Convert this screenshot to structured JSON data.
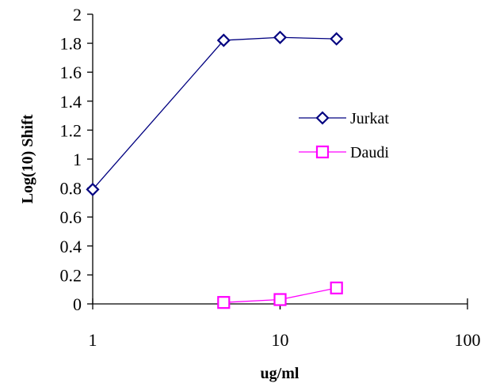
{
  "chart_data": {
    "type": "line",
    "xscale": "log",
    "xlim": [
      1,
      100
    ],
    "ylim": [
      0,
      2
    ],
    "ytick_step": 0.2,
    "xticks": [
      1,
      10,
      100
    ],
    "xtick_labels": [
      "1",
      "10",
      "100"
    ],
    "yticks": [
      0,
      0.2,
      0.4,
      0.6,
      0.8,
      1,
      1.2,
      1.4,
      1.6,
      1.8,
      2
    ],
    "ytick_labels": [
      "0",
      "0.2",
      "0.4",
      "0.6",
      "0.8",
      "1",
      "1.2",
      "1.4",
      "1.6",
      "1.8",
      "2"
    ],
    "xlabel": "ug/ml",
    "ylabel": "Log(10) Shift",
    "grid": false,
    "legend_position": "right",
    "series": [
      {
        "name": "Jurkat",
        "color": "#000080",
        "marker": "diamond",
        "x": [
          1,
          5,
          10,
          20
        ],
        "y": [
          0.79,
          1.82,
          1.84,
          1.83
        ]
      },
      {
        "name": "Daudi",
        "color": "#ff00ff",
        "marker": "square",
        "x": [
          5,
          10,
          20
        ],
        "y": [
          0.01,
          0.03,
          0.11
        ]
      }
    ]
  }
}
